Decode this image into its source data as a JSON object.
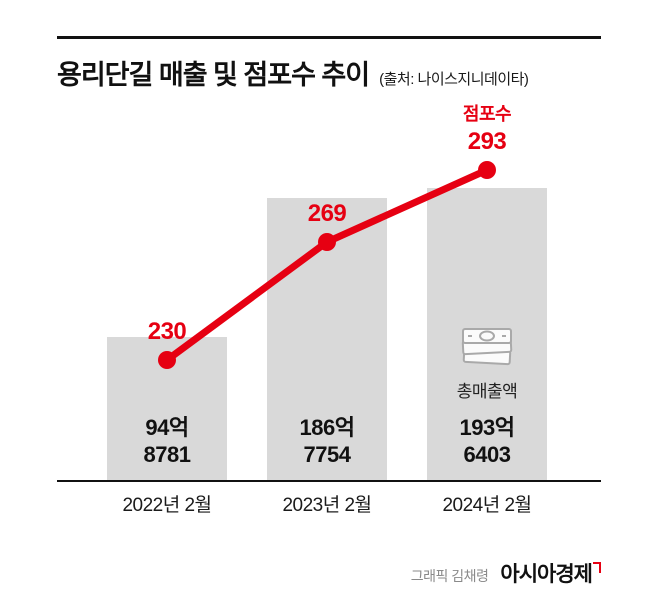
{
  "chart_data": {
    "type": "bar+line combo",
    "title": "용리단길 매출 및 점포수 추이",
    "source": "(출처: 나이스지니데이타)",
    "categories": [
      "2022년 2월",
      "2023년 2월",
      "2024년 2월"
    ],
    "bar_series": {
      "name": "총매출액",
      "unit": "억원",
      "values": [
        94.8781,
        186.7754,
        193.6403
      ],
      "labels": [
        [
          "94억",
          "8781"
        ],
        [
          "186억",
          "7754"
        ],
        [
          "193억",
          "6403"
        ]
      ]
    },
    "line_series": {
      "name": "점포수",
      "values": [
        230,
        269,
        293
      ]
    },
    "colors": {
      "bar": "#d9d9d9",
      "line": "#e60012",
      "value_text": "#111111"
    },
    "grid": false,
    "y_axis": "none (values labeled directly on chart)",
    "legend_position": "above last line point"
  },
  "footer": {
    "credit": "그래픽 김채령",
    "publisher": "아시아경제"
  }
}
